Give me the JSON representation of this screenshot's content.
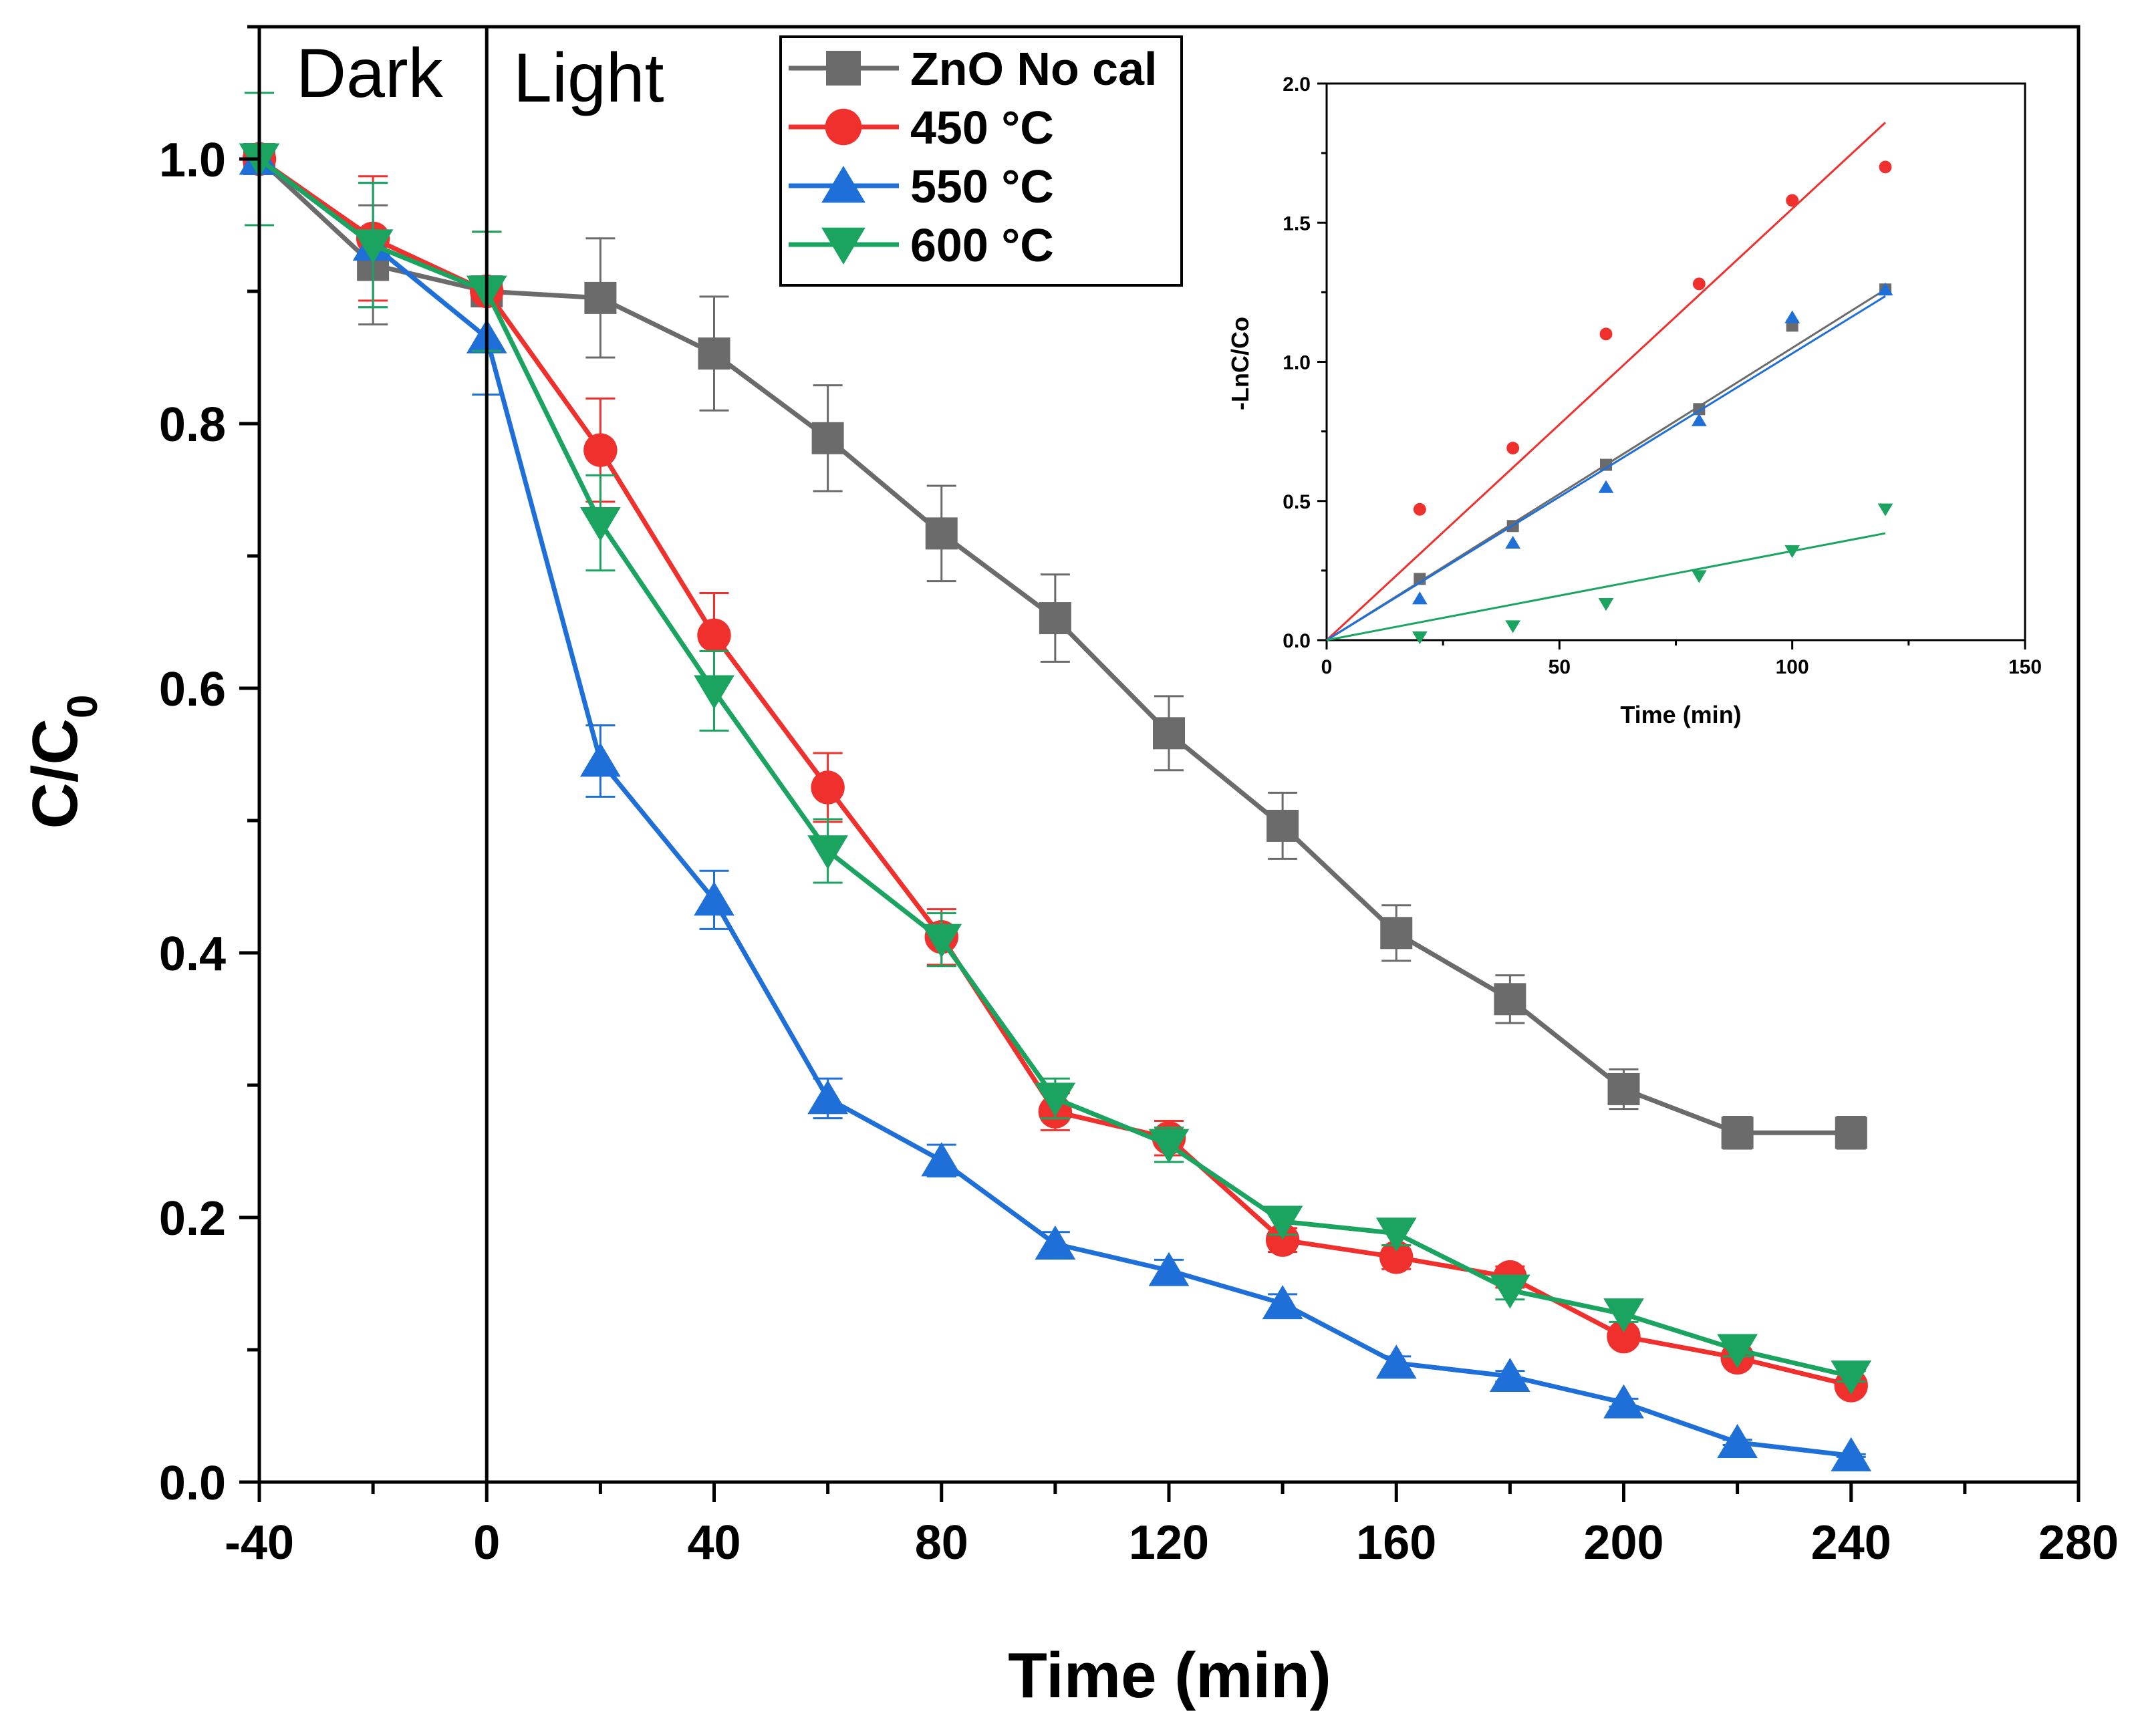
{
  "chart_data": [
    {
      "type": "line",
      "title": "",
      "xlabel": "Time (min)",
      "ylabel": "C/C0",
      "ylabel_main": "C/C",
      "ylabel_sub": "0",
      "xlim": [
        -40,
        280
      ],
      "ylim": [
        0.0,
        1.1
      ],
      "xticks": [
        -40,
        0,
        40,
        80,
        120,
        160,
        200,
        240,
        280
      ],
      "xtick_labels": [
        "-40",
        "0",
        "40",
        "80",
        "120",
        "160",
        "200",
        "240",
        "280"
      ],
      "yticks": [
        0.0,
        0.2,
        0.4,
        0.6,
        0.8,
        1.0
      ],
      "ytick_labels": [
        "0.0",
        "0.2",
        "0.4",
        "0.6",
        "0.8",
        "1.0"
      ],
      "region_labels": {
        "dark": "Dark",
        "light": "Light"
      },
      "divider_x": 0,
      "legend_position": "top-center",
      "x": [
        -40,
        -20,
        0,
        20,
        40,
        60,
        80,
        100,
        120,
        140,
        160,
        180,
        200,
        220,
        240
      ],
      "series": [
        {
          "name": "ZnO No cal",
          "marker": "square",
          "color": "#6b6b6b",
          "x": [
            -40,
            -20,
            0,
            20,
            40,
            60,
            80,
            100,
            120,
            140,
            160,
            180,
            200,
            220,
            240
          ],
          "values": [
            1.0,
            0.92,
            0.9,
            0.895,
            0.853,
            0.789,
            0.717,
            0.653,
            0.566,
            0.496,
            0.415,
            0.365,
            0.297,
            0.264,
            0.264
          ],
          "errors": [
            0.05,
            0.045,
            0.045,
            0.045,
            0.043,
            0.04,
            0.036,
            0.033,
            0.028,
            0.025,
            0.021,
            0.018,
            0.015,
            0.012,
            0.012
          ]
        },
        {
          "name": "450 °C",
          "marker": "circle",
          "color": "#f0302c",
          "x": [
            -40,
            -20,
            0,
            20,
            40,
            60,
            80,
            100,
            120,
            140,
            160,
            180,
            200,
            220,
            240
          ],
          "values": [
            1.0,
            0.94,
            0.9,
            0.78,
            0.64,
            0.525,
            0.412,
            0.28,
            0.26,
            0.183,
            0.17,
            0.155,
            0.11,
            0.094,
            0.073
          ],
          "errors": [
            0.05,
            0.047,
            0.045,
            0.039,
            0.032,
            0.026,
            0.021,
            0.014,
            0.013,
            0.009,
            0.009,
            0.008,
            0.006,
            0.005,
            0.004
          ]
        },
        {
          "name": "550 °C",
          "marker": "triangle-up",
          "color": "#1f6fd8",
          "x": [
            -40,
            -20,
            0,
            20,
            40,
            60,
            80,
            100,
            120,
            140,
            160,
            180,
            200,
            220,
            240
          ],
          "values": [
            1.0,
            0.935,
            0.865,
            0.545,
            0.44,
            0.29,
            0.243,
            0.18,
            0.16,
            0.135,
            0.09,
            0.08,
            0.06,
            0.03,
            0.02
          ],
          "errors": [
            0.05,
            0.047,
            0.043,
            0.027,
            0.022,
            0.015,
            0.012,
            0.009,
            0.008,
            0.007,
            0.005,
            0.004,
            0.003,
            0.002,
            0.001
          ]
        },
        {
          "name": "600 °C",
          "marker": "triangle-down",
          "color": "#1aa460",
          "x": [
            -40,
            -20,
            0,
            20,
            40,
            60,
            80,
            100,
            120,
            140,
            160,
            180,
            200,
            220,
            240
          ],
          "values": [
            1.0,
            0.935,
            0.9,
            0.725,
            0.598,
            0.477,
            0.41,
            0.29,
            0.255,
            0.197,
            0.188,
            0.145,
            0.127,
            0.1,
            0.08
          ],
          "errors": [
            0.05,
            0.047,
            0.045,
            0.036,
            0.03,
            0.024,
            0.02,
            0.015,
            0.013,
            0.01,
            0.009,
            0.007,
            0.006,
            0.005,
            0.004
          ]
        }
      ]
    },
    {
      "type": "scatter",
      "title": "",
      "xlabel": "Time (min)",
      "ylabel": "-LnC/Co",
      "xlim": [
        0,
        150
      ],
      "ylim": [
        0.0,
        2.0
      ],
      "xticks": [
        0,
        50,
        100,
        150
      ],
      "xtick_labels": [
        "0",
        "50",
        "100",
        "150"
      ],
      "yticks": [
        0.0,
        0.5,
        1.0,
        1.5,
        2.0
      ],
      "ytick_labels": [
        "0.0",
        "0.5",
        "1.0",
        "1.5",
        "2.0"
      ],
      "position": "inset top-right",
      "series": [
        {
          "name": "ZnO No cal",
          "marker": "square",
          "color": "#6b6b6b",
          "x": [
            20,
            40,
            60,
            80,
            100,
            120
          ],
          "values": [
            0.22,
            0.41,
            0.63,
            0.83,
            1.13,
            1.26
          ],
          "fit_slope": 0.0105
        },
        {
          "name": "450 °C",
          "marker": "circle",
          "color": "#f0302c",
          "x": [
            20,
            40,
            60,
            80,
            100,
            120
          ],
          "values": [
            0.47,
            0.69,
            1.1,
            1.28,
            1.58,
            1.7
          ],
          "fit_slope": 0.0155
        },
        {
          "name": "550 °C",
          "marker": "triangle-up",
          "color": "#1f6fd8",
          "x": [
            20,
            40,
            60,
            80,
            100,
            120
          ],
          "values": [
            0.15,
            0.35,
            0.55,
            0.79,
            1.16,
            1.26
          ],
          "fit_slope": 0.0103
        },
        {
          "name": "600 °C",
          "marker": "triangle-down",
          "color": "#1aa460",
          "x": [
            20,
            40,
            60,
            80,
            100,
            120
          ],
          "values": [
            0.01,
            0.05,
            0.13,
            0.23,
            0.32,
            0.47
          ],
          "fit_slope": 0.0032
        }
      ]
    }
  ]
}
